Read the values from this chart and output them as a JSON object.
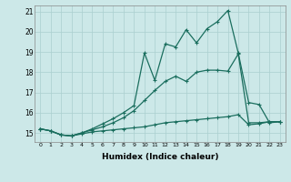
{
  "xlabel": "Humidex (Indice chaleur)",
  "bg_color": "#cce8e8",
  "grid_color": "#aacfcf",
  "line_color": "#1a6e5e",
  "xlim": [
    -0.5,
    23.5
  ],
  "ylim": [
    14.55,
    21.3
  ],
  "xticks": [
    0,
    1,
    2,
    3,
    4,
    5,
    6,
    7,
    8,
    9,
    10,
    11,
    12,
    13,
    14,
    15,
    16,
    17,
    18,
    19,
    20,
    21,
    22,
    23
  ],
  "yticks": [
    15,
    16,
    17,
    18,
    19,
    20,
    21
  ],
  "line1_x": [
    0,
    1,
    2,
    3,
    4,
    5,
    6,
    7,
    8,
    9,
    10,
    11,
    12,
    13,
    14,
    15,
    16,
    17,
    18,
    19,
    20,
    21,
    22,
    23
  ],
  "line1_y": [
    15.2,
    15.1,
    14.9,
    14.85,
    14.95,
    15.05,
    15.1,
    15.15,
    15.2,
    15.25,
    15.3,
    15.4,
    15.5,
    15.55,
    15.6,
    15.65,
    15.7,
    15.75,
    15.8,
    15.9,
    15.4,
    15.45,
    15.55,
    15.55
  ],
  "line2_x": [
    0,
    1,
    2,
    3,
    4,
    5,
    6,
    7,
    8,
    9,
    10,
    11,
    12,
    13,
    14,
    15,
    16,
    17,
    18,
    19,
    20,
    21,
    22,
    23
  ],
  "line2_y": [
    15.2,
    15.1,
    14.9,
    14.85,
    15.0,
    15.15,
    15.3,
    15.5,
    15.75,
    16.1,
    16.6,
    17.1,
    17.55,
    17.8,
    17.55,
    18.0,
    18.1,
    18.1,
    18.05,
    18.9,
    15.5,
    15.5,
    15.55,
    15.55
  ],
  "line3_x": [
    0,
    1,
    2,
    3,
    4,
    5,
    6,
    7,
    8,
    9,
    10,
    11,
    12,
    13,
    14,
    15,
    16,
    17,
    18,
    19,
    20,
    21,
    22,
    23
  ],
  "line3_y": [
    15.2,
    15.1,
    14.9,
    14.85,
    15.0,
    15.2,
    15.45,
    15.7,
    16.0,
    16.35,
    18.95,
    17.6,
    19.4,
    19.25,
    20.1,
    19.45,
    20.15,
    20.5,
    21.05,
    18.95,
    16.5,
    16.4,
    15.5,
    15.55
  ]
}
